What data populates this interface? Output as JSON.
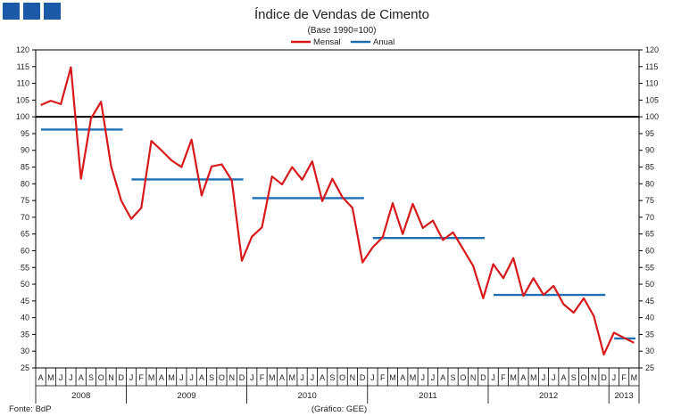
{
  "brand": {
    "color": "#1a5aa6",
    "logo": "three-blue-squares"
  },
  "footer": {
    "source": "Fonte: BdP",
    "credit": "(Gráfico: GEE)"
  },
  "chart_data": {
    "type": "line",
    "title": "Índice de Vendas de Cimento",
    "subtitle": "(Base 1990=100)",
    "ylim": [
      25,
      120
    ],
    "yticks": [
      25,
      30,
      35,
      40,
      45,
      50,
      55,
      60,
      65,
      70,
      75,
      80,
      85,
      90,
      95,
      100,
      105,
      110,
      115,
      120
    ],
    "grid": false,
    "legend_position": "top-center",
    "reference_line": {
      "y": 100,
      "color": "#000000"
    },
    "months": [
      "A",
      "M",
      "J",
      "J",
      "A",
      "S",
      "O",
      "N",
      "D",
      "J",
      "F",
      "M",
      "A",
      "M",
      "J",
      "J",
      "A",
      "S",
      "O",
      "N",
      "D",
      "J",
      "F",
      "M",
      "A",
      "M",
      "J",
      "J",
      "A",
      "S",
      "O",
      "N",
      "D",
      "J",
      "F",
      "M",
      "A",
      "M",
      "J",
      "J",
      "A",
      "S",
      "O",
      "N",
      "D",
      "J",
      "F",
      "M",
      "A",
      "M",
      "J",
      "J",
      "A",
      "S",
      "O",
      "N",
      "D",
      "J",
      "F",
      "M"
    ],
    "years": [
      {
        "label": "2008",
        "start": 0,
        "end": 9
      },
      {
        "label": "2009",
        "start": 9,
        "end": 21
      },
      {
        "label": "2010",
        "start": 21,
        "end": 33
      },
      {
        "label": "2011",
        "start": 33,
        "end": 45
      },
      {
        "label": "2012",
        "start": 45,
        "end": 57
      },
      {
        "label": "2013",
        "start": 57,
        "end": 60
      }
    ],
    "series": [
      {
        "name": "Mensal",
        "color": "#d7191c",
        "values": [
          103.5,
          104.8,
          103.8,
          114.8,
          81.5,
          99.5,
          104.5,
          85.2,
          75.0,
          69.5,
          72.8,
          92.8,
          90.0,
          87.0,
          85.0,
          93.2,
          76.5,
          85.2,
          85.8,
          81.0,
          57.0,
          64.2,
          67.0,
          82.2,
          79.8,
          85.0,
          81.2,
          86.7,
          74.8,
          81.5,
          76.0,
          72.8,
          56.5,
          61.0,
          64.0,
          74.2,
          65.0,
          74.0,
          66.8,
          69.0,
          63.2,
          65.5,
          60.5,
          55.5,
          45.8,
          56.0,
          51.8,
          57.8,
          46.5,
          51.8,
          46.8,
          49.5,
          44.0,
          41.5,
          45.8,
          40.5,
          29.0,
          35.5,
          34.0,
          32.5
        ]
      },
      {
        "name": "Anual",
        "color": "#1f6fb5",
        "segments": [
          {
            "from": 0,
            "to": 9,
            "value": 96.2
          },
          {
            "from": 9,
            "to": 21,
            "value": 81.3
          },
          {
            "from": 21,
            "to": 33,
            "value": 75.7
          },
          {
            "from": 33,
            "to": 45,
            "value": 63.8
          },
          {
            "from": 45,
            "to": 57,
            "value": 46.8
          },
          {
            "from": 57,
            "to": 60,
            "value": 33.8
          }
        ]
      }
    ]
  }
}
